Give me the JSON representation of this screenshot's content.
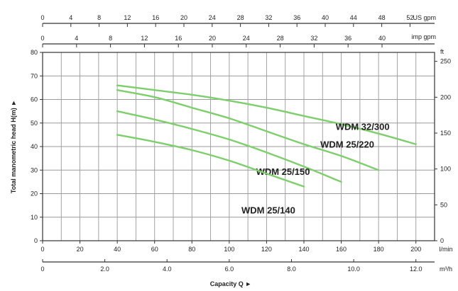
{
  "chart_data": {
    "type": "line",
    "title": "",
    "xlabel": "Capacity Q",
    "ylabel": "Total manometric head H(m)",
    "x_range_lmin": [
      0,
      210
    ],
    "y_range_m": [
      0,
      80
    ],
    "grid": true,
    "x_axes": {
      "us_gpm": {
        "unit": "US gpm",
        "ticks": [
          "0",
          "4",
          "8",
          "12",
          "16",
          "20",
          "24",
          "28",
          "32",
          "36",
          "40",
          "44",
          "48",
          "52"
        ],
        "tick_values": [
          0,
          4,
          8,
          12,
          16,
          20,
          24,
          28,
          32,
          36,
          40,
          44,
          48,
          52
        ]
      },
      "imp_gpm": {
        "unit": "imp gpm",
        "ticks": [
          "0",
          "4",
          "8",
          "12",
          "16",
          "20",
          "24",
          "28",
          "32",
          "36",
          "40"
        ],
        "tick_values": [
          0,
          4,
          8,
          12,
          16,
          20,
          24,
          28,
          32,
          36,
          40
        ]
      },
      "l_min": {
        "unit": "l/min",
        "ticks": [
          "0",
          "20",
          "40",
          "60",
          "80",
          "100",
          "120",
          "140",
          "160",
          "180",
          "200"
        ],
        "tick_values": [
          0,
          20,
          40,
          60,
          80,
          100,
          120,
          140,
          160,
          180,
          200
        ]
      },
      "m3_h": {
        "unit": "m³/h",
        "ticks": [
          "0",
          "2.0",
          "4.0",
          "6.0",
          "8.0",
          "10.0",
          "12.0"
        ],
        "tick_values": [
          0,
          2,
          4,
          6,
          8,
          10,
          12
        ]
      }
    },
    "y_axes": {
      "m": {
        "ticks": [
          "0",
          "10",
          "20",
          "30",
          "40",
          "50",
          "60",
          "70",
          "80"
        ],
        "tick_values": [
          0,
          10,
          20,
          30,
          40,
          50,
          60,
          70,
          80
        ]
      },
      "ft": {
        "unit": "ft",
        "ticks": [
          "0",
          "50",
          "100",
          "150",
          "200",
          "250"
        ],
        "tick_values": [
          0,
          50,
          100,
          150,
          200,
          250
        ]
      }
    },
    "series": [
      {
        "name": "WDM 32/300",
        "color": "#7ccf6a",
        "x": [
          40,
          60,
          80,
          100,
          120,
          140,
          160,
          180,
          200
        ],
        "y": [
          66,
          64,
          62,
          59.5,
          56.5,
          53,
          49.5,
          45.5,
          41
        ]
      },
      {
        "name": "WDM 25/220",
        "color": "#7ccf6a",
        "x": [
          40,
          60,
          80,
          100,
          120,
          140,
          160,
          180
        ],
        "y": [
          64,
          61,
          56.5,
          52,
          46.5,
          41,
          36,
          30
        ]
      },
      {
        "name": "WDM 25/150",
        "color": "#7ccf6a",
        "x": [
          40,
          60,
          80,
          100,
          120,
          140,
          160
        ],
        "y": [
          55,
          51.5,
          47.5,
          43,
          37.5,
          31.5,
          25
        ]
      },
      {
        "name": "WDM 25/140",
        "color": "#7ccf6a",
        "x": [
          40,
          60,
          80,
          100,
          120,
          140
        ],
        "y": [
          45,
          42,
          38.5,
          34,
          28.5,
          23
        ]
      }
    ]
  }
}
